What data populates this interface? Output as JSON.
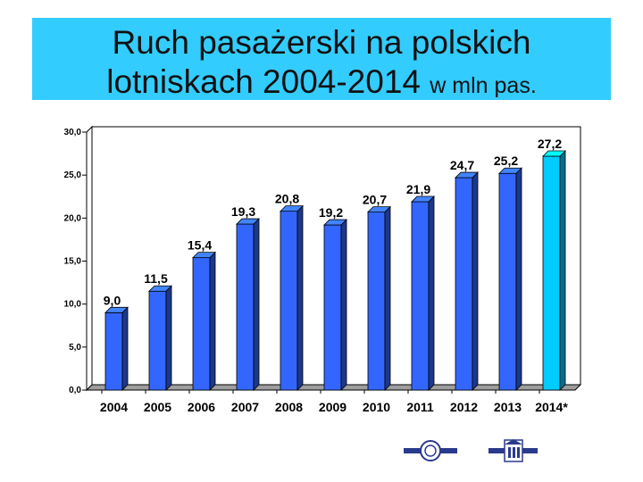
{
  "title": {
    "line1": "Ruch pasażerski na polskich",
    "line2_main": "lotniskach 2004-2014",
    "line2_suffix": "w mln pas."
  },
  "colors": {
    "bar": "#3366ff",
    "bar_highlight": "#00ccff",
    "banner": "#33ccff",
    "floor": "#9e9e9e"
  },
  "chart_data": {
    "type": "bar",
    "categories": [
      "2004",
      "2005",
      "2006",
      "2007",
      "2008",
      "2009",
      "2010",
      "2011",
      "2012",
      "2013",
      "2014*"
    ],
    "values": [
      9.0,
      11.5,
      15.4,
      19.3,
      20.8,
      19.2,
      20.7,
      21.9,
      24.7,
      25.2,
      27.2
    ],
    "value_labels": [
      "9,0",
      "11,5",
      "15,4",
      "19,3",
      "20,8",
      "19,2",
      "20,7",
      "21,9",
      "24,7",
      "25,2",
      "27,2"
    ],
    "highlight_index": 10,
    "ylim": [
      0,
      30
    ],
    "yticks": [
      0,
      5,
      10,
      15,
      20,
      25,
      30
    ],
    "ytick_labels": [
      "0,0",
      "5,0",
      "10,0",
      "15,0",
      "20,0",
      "25,0",
      "30,0"
    ],
    "grid": false,
    "legend": "none",
    "style": "3d"
  },
  "logos": [
    "left-seal-logo",
    "right-building-logo"
  ]
}
